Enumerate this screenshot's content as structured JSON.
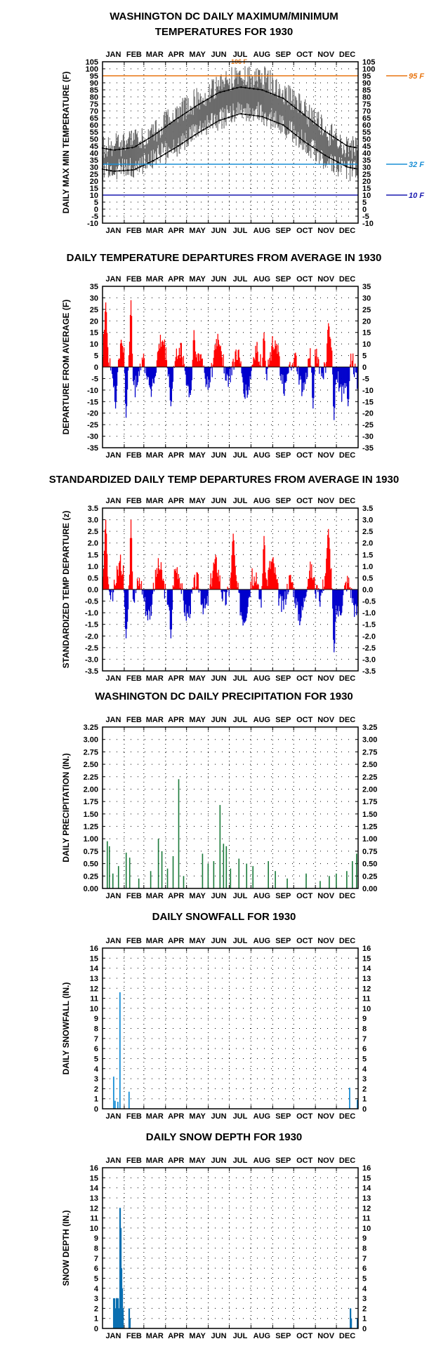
{
  "colors": {
    "max_temp": "#6b6b6b",
    "normal_line": "#000000",
    "ref_95": "#e87511",
    "ref_32": "#1a8fd6",
    "ref_10": "#1a1ab0",
    "positive": "#ff0000",
    "negative": "#0000cc",
    "precip": "#1a7a3a",
    "snow": "#1a8fd6",
    "snow_depth": "#0a6fb0"
  },
  "months": [
    "JAN",
    "FEB",
    "MAR",
    "APR",
    "MAY",
    "JUN",
    "JUL",
    "AUG",
    "SEP",
    "OCT",
    "NOV",
    "DEC"
  ],
  "chart_data": [
    {
      "type": "line",
      "title_lines": [
        "WASHINGTON DC DAILY MAXIMUM/MINIMUM",
        "TEMPERATURES FOR 1930"
      ],
      "ylabel": "DAILY MAX MIN TEMPERATURE (F)",
      "ylim": [
        -10,
        105
      ],
      "yticks": [
        -10,
        -5,
        0,
        5,
        10,
        15,
        20,
        25,
        30,
        35,
        40,
        45,
        50,
        55,
        60,
        65,
        70,
        75,
        80,
        85,
        90,
        95,
        100,
        105
      ],
      "grid": "dotted",
      "reference_lines": [
        {
          "value": 95,
          "label": "95 F",
          "color": "#e87511"
        },
        {
          "value": 32,
          "label": "32 F",
          "color": "#1a8fd6"
        },
        {
          "value": 10,
          "label": "10 F",
          "color": "#1a1ab0"
        }
      ],
      "annotation": {
        "month": "JUL",
        "label": "106 F",
        "value": 106,
        "day": 195
      },
      "series": [
        {
          "name": "",
          "kind": "normal_max",
          "monthly_values": [
            42,
            44,
            53,
            64,
            74,
            83,
            87,
            85,
            79,
            67,
            55,
            45
          ]
        },
        {
          "name": "",
          "kind": "normal_min",
          "monthly_values": [
            27,
            28,
            35,
            44,
            54,
            63,
            68,
            66,
            60,
            48,
            38,
            30
          ]
        },
        {
          "name": "",
          "kind": "observed_range",
          "description_values": "daily max/min band (approx. monthly)",
          "monthly_max": [
            45,
            48,
            55,
            68,
            78,
            88,
            95,
            94,
            84,
            70,
            55,
            43
          ],
          "monthly_min": [
            28,
            30,
            37,
            45,
            55,
            64,
            70,
            68,
            60,
            47,
            35,
            27
          ]
        }
      ]
    },
    {
      "type": "bar",
      "title_lines": [
        "DAILY TEMPERATURE DEPARTURES FROM AVERAGE IN 1930"
      ],
      "ylabel": "DEPARTURE FROM AVERAGE (F)",
      "ylim": [
        -35,
        35
      ],
      "yticks": [
        -35,
        -30,
        -25,
        -20,
        -15,
        -10,
        -5,
        0,
        5,
        10,
        15,
        20,
        25,
        30,
        35
      ],
      "grid": "dotted",
      "peaks": [
        {
          "day": 4,
          "value": 28
        },
        {
          "day": 18,
          "value": -18
        },
        {
          "day": 33,
          "value": -22
        },
        {
          "day": 40,
          "value": 29
        },
        {
          "day": 97,
          "value": -17
        },
        {
          "day": 130,
          "value": 16
        },
        {
          "day": 230,
          "value": 15
        },
        {
          "day": 300,
          "value": -18
        },
        {
          "day": 322,
          "value": 19
        },
        {
          "day": 330,
          "value": -23
        },
        {
          "day": 350,
          "value": -17
        }
      ]
    },
    {
      "type": "bar",
      "title_lines": [
        "STANDARDIZED DAILY TEMP DEPARTURES FROM AVERAGE IN 1930"
      ],
      "ylabel": "STANDARDIZED TEMP DEPARTURE (z)",
      "ylim": [
        -3.5,
        3.5
      ],
      "yticks": [
        -3.5,
        -3.0,
        -2.5,
        -2.0,
        -1.5,
        -1.0,
        -0.5,
        0.0,
        0.5,
        1.0,
        1.5,
        2.0,
        2.5,
        3.0,
        3.5
      ],
      "grid": "dotted",
      "peaks": [
        {
          "day": 4,
          "value": 3.0
        },
        {
          "day": 33,
          "value": -2.1
        },
        {
          "day": 40,
          "value": 3.0
        },
        {
          "day": 97,
          "value": -2.1
        },
        {
          "day": 186,
          "value": 2.4
        },
        {
          "day": 230,
          "value": 2.3
        },
        {
          "day": 330,
          "value": -2.7
        },
        {
          "day": 322,
          "value": 2.6
        }
      ]
    },
    {
      "type": "bar",
      "title_lines": [
        "WASHINGTON DC DAILY PRECIPITATION FOR 1930"
      ],
      "ylabel": "DAILY PRECIPITATION (IN.)",
      "ylim": [
        0,
        3.25
      ],
      "yticks": [
        0.0,
        0.25,
        0.5,
        0.75,
        1.0,
        1.25,
        1.5,
        1.75,
        2.0,
        2.25,
        2.5,
        2.75,
        3.0,
        3.25
      ],
      "grid": "dotted",
      "values": [
        {
          "day": 6,
          "value": 0.95
        },
        {
          "day": 9,
          "value": 0.85
        },
        {
          "day": 14,
          "value": 0.3
        },
        {
          "day": 22,
          "value": 0.45
        },
        {
          "day": 33,
          "value": 0.72
        },
        {
          "day": 38,
          "value": 0.62
        },
        {
          "day": 51,
          "value": 0.2
        },
        {
          "day": 68,
          "value": 0.35
        },
        {
          "day": 79,
          "value": 1.0
        },
        {
          "day": 84,
          "value": 0.75
        },
        {
          "day": 92,
          "value": 0.4
        },
        {
          "day": 100,
          "value": 0.65
        },
        {
          "day": 108,
          "value": 2.2
        },
        {
          "day": 115,
          "value": 0.25
        },
        {
          "day": 142,
          "value": 0.7
        },
        {
          "day": 150,
          "value": 0.5
        },
        {
          "day": 158,
          "value": 0.55
        },
        {
          "day": 167,
          "value": 1.68
        },
        {
          "day": 172,
          "value": 0.9
        },
        {
          "day": 176,
          "value": 0.85
        },
        {
          "day": 182,
          "value": 0.4
        },
        {
          "day": 194,
          "value": 0.6
        },
        {
          "day": 205,
          "value": 0.5
        },
        {
          "day": 214,
          "value": 0.45
        },
        {
          "day": 236,
          "value": 0.55
        },
        {
          "day": 246,
          "value": 0.35
        },
        {
          "day": 263,
          "value": 0.2
        },
        {
          "day": 290,
          "value": 0.3
        },
        {
          "day": 310,
          "value": 0.15
        },
        {
          "day": 323,
          "value": 0.25
        },
        {
          "day": 333,
          "value": 0.3
        },
        {
          "day": 348,
          "value": 0.35
        },
        {
          "day": 356,
          "value": 0.55
        },
        {
          "day": 362,
          "value": 0.7
        }
      ]
    },
    {
      "type": "bar",
      "title_lines": [
        "DAILY SNOWFALL FOR 1930"
      ],
      "ylabel": "DAILY SNOWFALL (IN.)",
      "ylim": [
        0,
        16
      ],
      "yticks": [
        0,
        1,
        2,
        3,
        4,
        5,
        6,
        7,
        8,
        9,
        10,
        11,
        12,
        13,
        14,
        15,
        16
      ],
      "grid": "dotted",
      "values": [
        {
          "day": 15,
          "value": 3.2
        },
        {
          "day": 17,
          "value": 0.8
        },
        {
          "day": 21,
          "value": 0.7
        },
        {
          "day": 24,
          "value": 11.6
        },
        {
          "day": 37,
          "value": 1.7
        },
        {
          "day": 352,
          "value": 2.1
        },
        {
          "day": 363,
          "value": 0.9
        }
      ]
    },
    {
      "type": "bar",
      "title_lines": [
        "DAILY SNOW DEPTH FOR 1930"
      ],
      "ylabel": "SNOW DEPTH (IN.)",
      "ylim": [
        0,
        16
      ],
      "yticks": [
        0,
        1,
        2,
        3,
        4,
        5,
        6,
        7,
        8,
        9,
        10,
        11,
        12,
        13,
        14,
        15,
        16
      ],
      "grid": "dotted",
      "values": [
        {
          "day": 15,
          "value": 3
        },
        {
          "day": 16,
          "value": 3
        },
        {
          "day": 17,
          "value": 2
        },
        {
          "day": 18,
          "value": 2
        },
        {
          "day": 19,
          "value": 3
        },
        {
          "day": 20,
          "value": 2
        },
        {
          "day": 21,
          "value": 3
        },
        {
          "day": 22,
          "value": 2
        },
        {
          "day": 23,
          "value": 2
        },
        {
          "day": 24,
          "value": 12
        },
        {
          "day": 25,
          "value": 10
        },
        {
          "day": 26,
          "value": 6
        },
        {
          "day": 27,
          "value": 4
        },
        {
          "day": 28,
          "value": 2
        },
        {
          "day": 37,
          "value": 2
        },
        {
          "day": 38,
          "value": 1
        },
        {
          "day": 353,
          "value": 2
        },
        {
          "day": 354,
          "value": 1
        },
        {
          "day": 363,
          "value": 1
        }
      ]
    }
  ]
}
